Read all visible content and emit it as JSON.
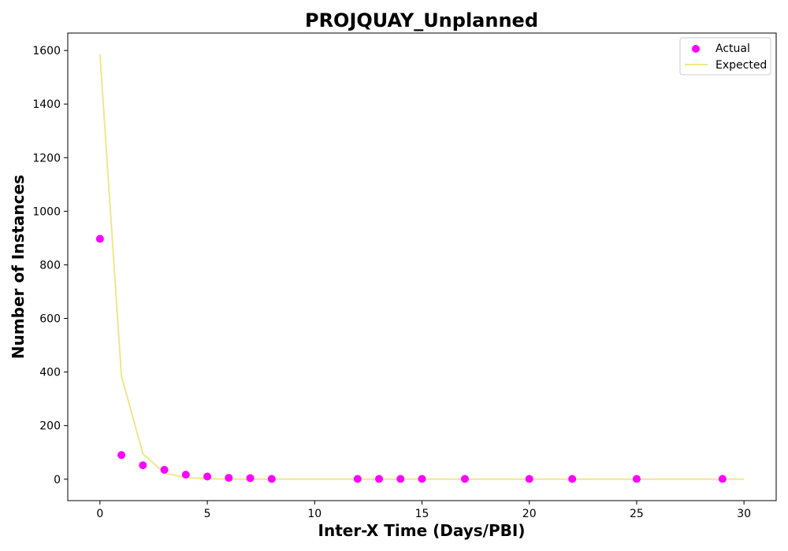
{
  "colors": {
    "actual": "#ff00ff",
    "expected": "#f0e68c",
    "axis": "#000000",
    "legend_border": "#cccccc"
  },
  "chart_data": {
    "type": "scatter",
    "title": "PROJQUAY_Unplanned",
    "xlabel": "Inter-X Time (Days/PBI)",
    "ylabel": "Number of Instances",
    "xlim": [
      -1.5,
      31.5
    ],
    "ylim": [
      -80,
      1665
    ],
    "xticks": [
      0,
      5,
      10,
      15,
      20,
      25,
      30
    ],
    "yticks": [
      0,
      200,
      400,
      600,
      800,
      1000,
      1200,
      1400,
      1600
    ],
    "grid": false,
    "legend_position": "top-right",
    "series": [
      {
        "name": "Actual",
        "kind": "scatter",
        "x": [
          0,
          1,
          2,
          3,
          4,
          5,
          6,
          7,
          8,
          12,
          13,
          14,
          15,
          17,
          20,
          22,
          25,
          29
        ],
        "y": [
          897,
          90,
          52,
          35,
          17,
          10,
          5,
          4,
          1,
          1,
          1,
          1,
          1,
          1,
          1,
          1,
          1,
          1
        ]
      },
      {
        "name": "Expected",
        "kind": "line",
        "x": [
          0,
          1,
          2,
          3,
          4,
          5,
          6,
          7,
          8,
          9,
          10,
          11,
          12,
          13,
          14,
          15,
          16,
          17,
          18,
          19,
          20,
          21,
          22,
          23,
          24,
          25,
          26,
          27,
          28,
          29,
          30
        ],
        "y": [
          1585,
          385,
          95,
          23,
          6,
          1.5,
          0.4,
          0.1,
          0,
          0,
          0,
          0,
          0,
          0,
          0,
          0,
          0,
          0,
          0,
          0,
          0,
          0,
          0,
          0,
          0,
          0,
          0,
          0,
          0,
          0,
          0
        ]
      }
    ]
  }
}
